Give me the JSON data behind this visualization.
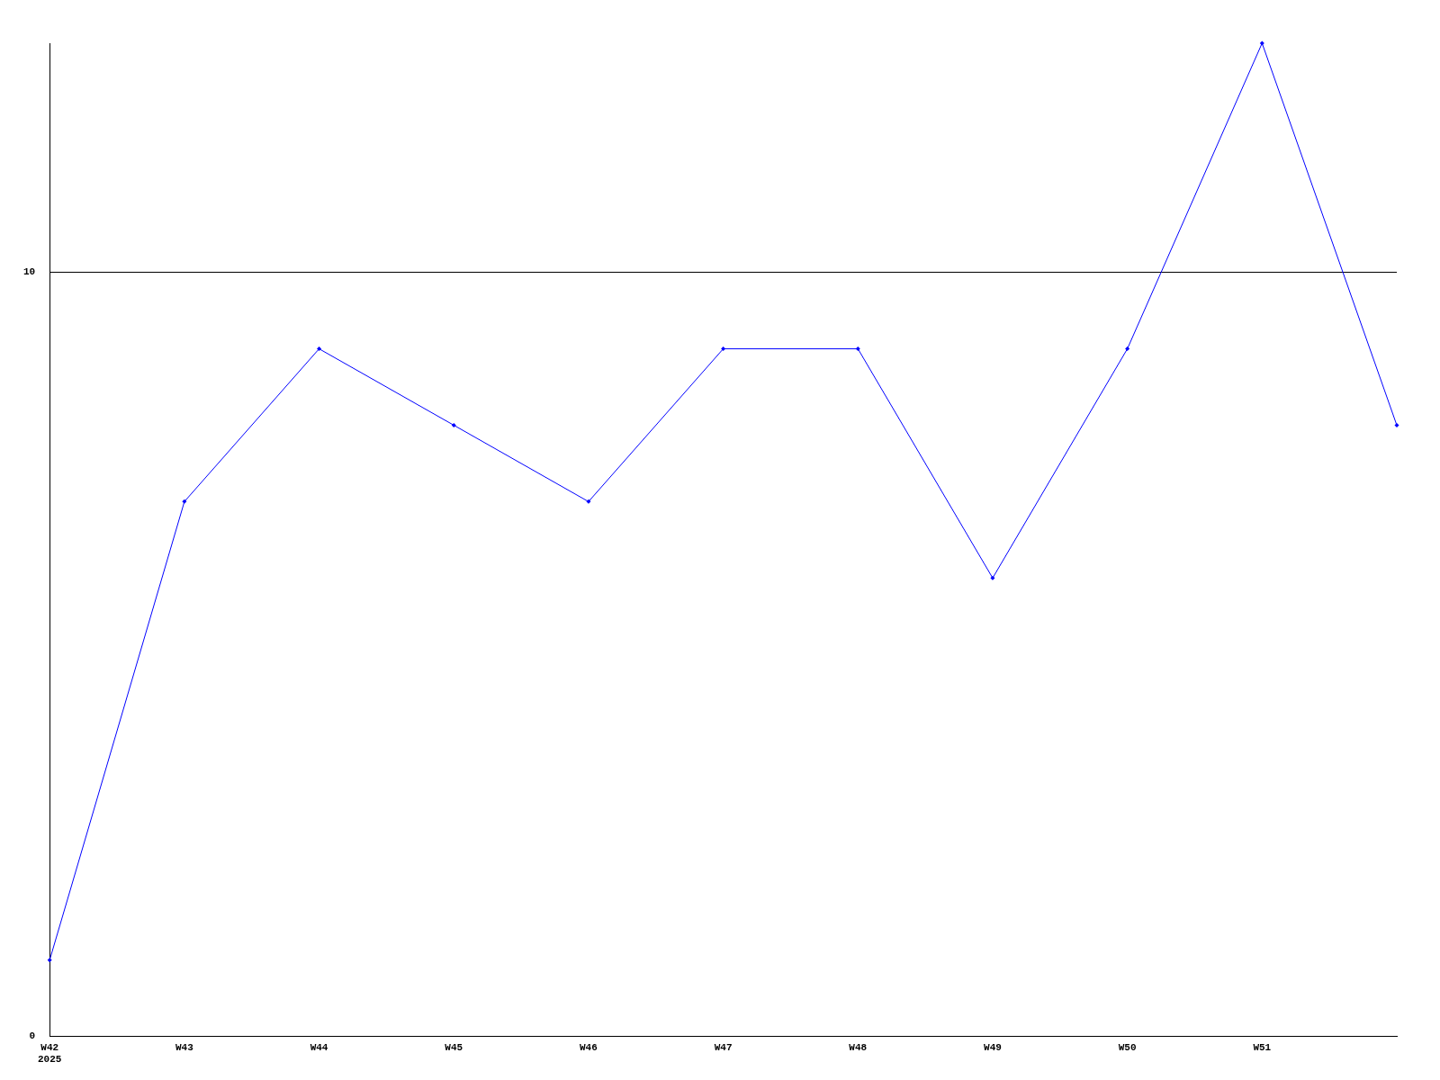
{
  "chart_data": {
    "type": "line",
    "categories": [
      "W42\n2025",
      "W43",
      "W44",
      "W45",
      "W46",
      "W47",
      "W48",
      "W49",
      "W50",
      "W51",
      null
    ],
    "series": [
      {
        "color": "#0000ff",
        "values": [
          1,
          7,
          9,
          8,
          7,
          9,
          9,
          6,
          9,
          13,
          8
        ]
      }
    ],
    "ylim": [
      0,
      13
    ],
    "yticks": [
      0,
      10
    ],
    "grid": "y",
    "legend": false,
    "marker": "diamond",
    "line_style": "solid"
  }
}
